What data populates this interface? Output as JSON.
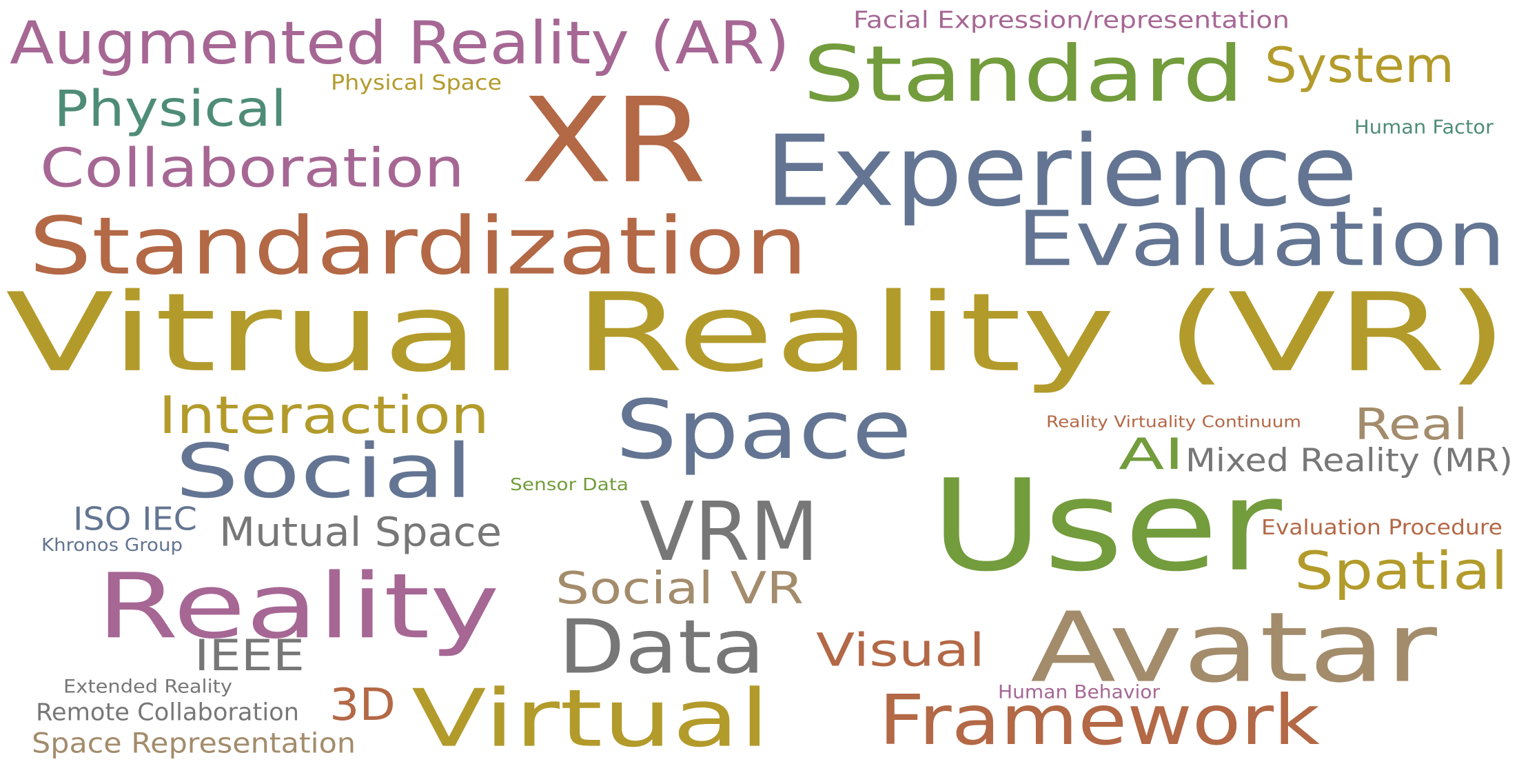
{
  "words": [
    {
      "text": "Vitrual Reality (VR)",
      "color": "#B39B2B"
    },
    {
      "text": "User",
      "color": "#739C3D"
    },
    {
      "text": "XR",
      "color": "#B36846"
    },
    {
      "text": "Avatar",
      "color": "#A38C6C"
    },
    {
      "text": "Experience",
      "color": "#637592"
    },
    {
      "text": "Standardization",
      "color": "#B36846"
    },
    {
      "text": "Standard",
      "color": "#739C3D"
    },
    {
      "text": "Evaluation",
      "color": "#637592"
    },
    {
      "text": "Reality",
      "color": "#A66794"
    },
    {
      "text": "Space",
      "color": "#637592"
    },
    {
      "text": "Virtual",
      "color": "#B39B2B"
    },
    {
      "text": "Framework",
      "color": "#B36846"
    },
    {
      "text": "VRM",
      "color": "#777777"
    },
    {
      "text": "Data",
      "color": "#777777"
    },
    {
      "text": "Social",
      "color": "#637592"
    },
    {
      "text": "Augmented Reality (AR)",
      "color": "#A66794"
    },
    {
      "text": "Collaboration",
      "color": "#A66794"
    },
    {
      "text": "Physical",
      "color": "#4E8C78"
    },
    {
      "text": "Interaction",
      "color": "#B39B2B"
    },
    {
      "text": "System",
      "color": "#B39B2B"
    },
    {
      "text": "Spatial",
      "color": "#B39B2B"
    },
    {
      "text": "Visual",
      "color": "#B36846"
    },
    {
      "text": "Social VR",
      "color": "#A38C6C"
    },
    {
      "text": "Mutual Space",
      "color": "#777777"
    },
    {
      "text": "Real",
      "color": "#A38C6C"
    },
    {
      "text": "AI",
      "color": "#739C3D"
    },
    {
      "text": "Mixed Reality (MR)",
      "color": "#777777"
    },
    {
      "text": "IEEE",
      "color": "#777777"
    },
    {
      "text": "3D",
      "color": "#B36846"
    },
    {
      "text": "ISO IEC",
      "color": "#637592"
    },
    {
      "text": "Facial Expression/representation",
      "color": "#A66794"
    },
    {
      "text": "Space Representation",
      "color": "#A38C6C"
    },
    {
      "text": "Remote Collaboration",
      "color": "#777777"
    },
    {
      "text": "Evaluation Procedure",
      "color": "#B36846"
    },
    {
      "text": "Khronos Group",
      "color": "#637592"
    },
    {
      "text": "Physical Space",
      "color": "#B39B2B"
    },
    {
      "text": "Human Factor",
      "color": "#4E8C78"
    },
    {
      "text": "Extended Reality",
      "color": "#777777"
    },
    {
      "text": "Human Behavior",
      "color": "#A66794"
    },
    {
      "text": "Sensor Data",
      "color": "#739C3D"
    },
    {
      "text": "Reality Virtuality Continuum",
      "color": "#B36846"
    }
  ]
}
